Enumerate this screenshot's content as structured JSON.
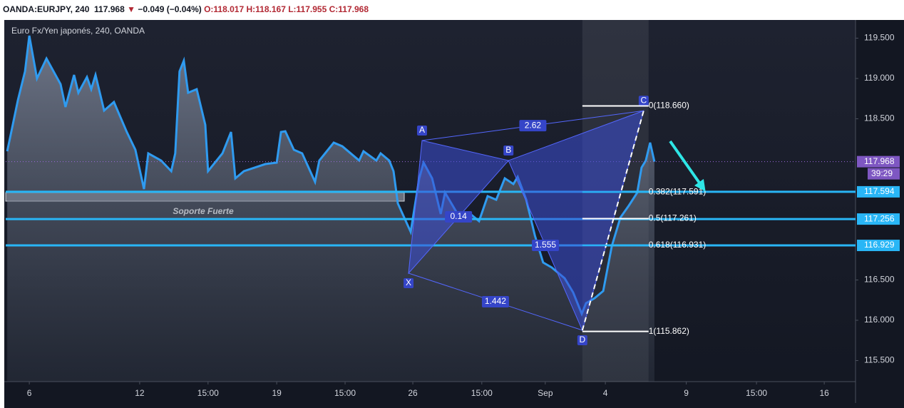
{
  "chart_data": {
    "type": "line",
    "header": {
      "symbol": "OANDA:EURJPY, 240",
      "last": "117.968",
      "arrow": "▼",
      "change": "−0.049 (−0.04%)",
      "open": "O:118.017",
      "high": "H:118.167",
      "low": "L:117.955",
      "close": "C:117.968"
    },
    "title": "Euro Fx/Yen japonés, 240, OANDA",
    "color": "#2f9bf0",
    "x": [
      0.5,
      4.0,
      6.3,
      7.7,
      10.2,
      13.3,
      17.9,
      19.5,
      22.3,
      23.7,
      26.5,
      27.9,
      29.3,
      32.1,
      35.3,
      39.5,
      42.3,
      45.1,
      46.5,
      50.7,
      54.0,
      55.3,
      56.7,
      58.1,
      59.5,
      62.3,
      65.1,
      66.0,
      70.7,
      73.5,
      74.9,
      77.7,
      84.7,
      88.4,
      89.8,
      91.2,
      94.0,
      96.7,
      100.9,
      102.3,
      107.0,
      109.8,
      115.3,
      116.7,
      120.9,
      122.3,
      125.1,
      126.5,
      127.9,
      132.1,
      134.9,
      136.3,
      139.1,
      141.9,
      143.3,
      147.4,
      151.6,
      154.4,
      157.2,
      160.0,
      162.8,
      165.6,
      167.0,
      169.8,
      172.6,
      175.3,
      178.1,
      182.3,
      185.1,
      187.9,
      189.3,
      192.1,
      194.9,
      197.7,
      200.5,
      203.3,
      206.0,
      207.4,
      208.8,
      210.2,
      211.6
    ],
    "values": [
      118.097,
      118.735,
      119.088,
      119.531,
      119.0,
      119.248,
      118.929,
      118.646,
      119.044,
      118.823,
      119.018,
      118.867,
      119.044,
      118.602,
      118.708,
      118.336,
      118.115,
      117.628,
      118.071,
      117.982,
      117.85,
      118.071,
      119.088,
      119.221,
      118.823,
      118.867,
      118.425,
      117.85,
      118.071,
      118.336,
      117.761,
      117.85,
      117.938,
      117.956,
      118.336,
      118.345,
      118.115,
      118.071,
      117.717,
      117.982,
      118.204,
      118.159,
      117.982,
      118.097,
      117.982,
      118.071,
      117.982,
      117.85,
      117.451,
      117.097,
      117.761,
      117.956,
      117.761,
      117.319,
      117.584,
      117.319,
      117.319,
      117.23,
      117.54,
      117.496,
      117.761,
      117.69,
      117.779,
      117.496,
      117.053,
      116.717,
      116.655,
      116.522,
      116.345,
      116.08,
      116.212,
      116.274,
      116.363,
      116.92,
      117.274,
      117.425,
      117.584,
      117.894,
      117.982,
      118.204,
      117.968
    ],
    "xlim": [
      0,
      277.2
    ],
    "ylim": [
      115.239,
      119.726
    ],
    "xticks": [
      {
        "value": 7.7,
        "label": "6"
      },
      {
        "value": 43.7,
        "label": "12"
      },
      {
        "value": 66.0,
        "label": "15:00"
      },
      {
        "value": 88.4,
        "label": "19"
      },
      {
        "value": 110.7,
        "label": "15:00"
      },
      {
        "value": 132.8,
        "label": "26"
      },
      {
        "value": 155.3,
        "label": "15:00"
      },
      {
        "value": 176.0,
        "label": "Sep"
      },
      {
        "value": 195.6,
        "label": "4"
      },
      {
        "value": 222.0,
        "label": "9"
      },
      {
        "value": 244.9,
        "label": "15:00"
      },
      {
        "value": 267.0,
        "label": "16"
      }
    ],
    "yticks": [
      {
        "value": 115.5,
        "label": "115.500"
      },
      {
        "value": 116.0,
        "label": "116.000"
      },
      {
        "value": 116.5,
        "label": "116.500"
      },
      {
        "value": 118.5,
        "label": "118.500"
      },
      {
        "value": 119.0,
        "label": "119.000"
      },
      {
        "value": 119.5,
        "label": "119.500"
      }
    ],
    "levels": [
      {
        "value": 117.594,
        "label": "117.594"
      },
      {
        "value": 117.256,
        "label": "117.256"
      },
      {
        "value": 116.929,
        "label": "116.929"
      }
    ],
    "last_price": {
      "value": 117.968,
      "label": "117.968"
    },
    "countdown": "39:29",
    "support": {
      "label": "Soporte Fuerte",
      "top": 117.584,
      "bottom": 117.478,
      "start": 0,
      "end": 130.0
    },
    "fib": [
      {
        "value": 118.66,
        "label": "0(118.660)"
      },
      {
        "value": 117.591,
        "label": "0.382(117.591)"
      },
      {
        "value": 117.261,
        "label": "0.5(117.261)"
      },
      {
        "value": 116.931,
        "label": "0.618(116.931)"
      },
      {
        "value": 115.862,
        "label": "1(115.862)"
      }
    ],
    "pattern": [
      {
        "label": "X",
        "x": 131.4,
        "y": 116.584
      },
      {
        "label": "A",
        "x": 135.8,
        "y": 118.23
      },
      {
        "label": "B",
        "x": 164.0,
        "y": 117.982
      },
      {
        "label": "C",
        "x": 208.1,
        "y": 118.6
      },
      {
        "label": "D",
        "x": 188.1,
        "y": 115.876
      }
    ],
    "ratios": [
      {
        "label": "2.62",
        "from": 1,
        "to": 3
      },
      {
        "label": "0.14",
        "from": 0,
        "to": 2
      },
      {
        "label": "1.555",
        "from": 2,
        "to": 4
      },
      {
        "label": "1.442",
        "from": 0,
        "to": 4
      }
    ]
  }
}
